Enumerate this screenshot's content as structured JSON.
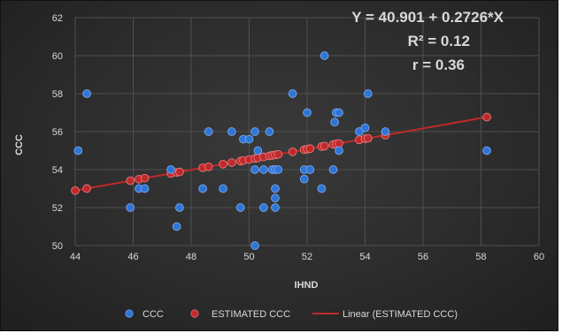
{
  "chart_data": {
    "type": "scatter",
    "xlabel": "IHND",
    "ylabel": "CCC",
    "xlim": [
      44,
      60
    ],
    "ylim": [
      50,
      62
    ],
    "x_ticks": [
      "44",
      "46",
      "48",
      "50",
      "52",
      "54",
      "56",
      "58",
      "60"
    ],
    "y_ticks": [
      "50",
      "52",
      "54",
      "56",
      "58",
      "60",
      "62"
    ],
    "grid": true,
    "legend_position": "bottom",
    "annotations": [
      "Y = 40.901 + 0.2726*X",
      "R² = 0.12",
      "r = 0.36"
    ],
    "regression": {
      "intercept": 40.901,
      "slope": 0.2726
    },
    "series": [
      {
        "name": "CCC",
        "color": "#2e75d6",
        "points": [
          [
            44.1,
            55
          ],
          [
            44.4,
            58
          ],
          [
            45.9,
            52
          ],
          [
            46.2,
            53
          ],
          [
            46.4,
            53
          ],
          [
            47.3,
            54
          ],
          [
            47.5,
            51
          ],
          [
            47.6,
            52
          ],
          [
            48.4,
            53
          ],
          [
            48.6,
            56
          ],
          [
            49.1,
            53
          ],
          [
            49.4,
            56
          ],
          [
            49.7,
            52
          ],
          [
            49.8,
            55.6
          ],
          [
            50.0,
            55.6
          ],
          [
            50.2,
            50
          ],
          [
            50.2,
            54
          ],
          [
            50.2,
            56
          ],
          [
            50.3,
            55
          ],
          [
            50.5,
            52
          ],
          [
            50.5,
            54
          ],
          [
            50.7,
            56
          ],
          [
            50.8,
            54
          ],
          [
            50.9,
            54
          ],
          [
            50.9,
            53
          ],
          [
            50.9,
            52.5
          ],
          [
            50.9,
            52
          ],
          [
            51.0,
            54
          ],
          [
            51.5,
            58
          ],
          [
            51.9,
            54
          ],
          [
            51.9,
            53.5
          ],
          [
            52.0,
            57
          ],
          [
            52.1,
            54
          ],
          [
            52.5,
            53
          ],
          [
            52.6,
            60
          ],
          [
            52.9,
            54
          ],
          [
            52.95,
            56.5
          ],
          [
            53.0,
            57
          ],
          [
            53.1,
            55
          ],
          [
            53.1,
            57
          ],
          [
            53.8,
            56
          ],
          [
            54.0,
            56.2
          ],
          [
            54.1,
            58
          ],
          [
            54.7,
            56
          ],
          [
            58.2,
            55
          ]
        ]
      },
      {
        "name": "ESTIMATED CCC",
        "color": "#c0292b",
        "x": [
          44.0,
          44.4,
          45.9,
          46.2,
          46.4,
          47.3,
          47.5,
          47.6,
          48.4,
          48.6,
          49.1,
          49.4,
          49.7,
          49.8,
          50.0,
          50.2,
          50.3,
          50.5,
          50.7,
          50.8,
          50.9,
          51.0,
          51.5,
          51.9,
          52.0,
          52.1,
          52.5,
          52.6,
          52.9,
          53.0,
          53.1,
          53.8,
          54.0,
          54.1,
          54.7,
          58.2
        ]
      },
      {
        "name": "Linear (ESTIMATED CCC)",
        "color": "#c0292b",
        "x_range": [
          44.0,
          58.2
        ]
      }
    ]
  }
}
